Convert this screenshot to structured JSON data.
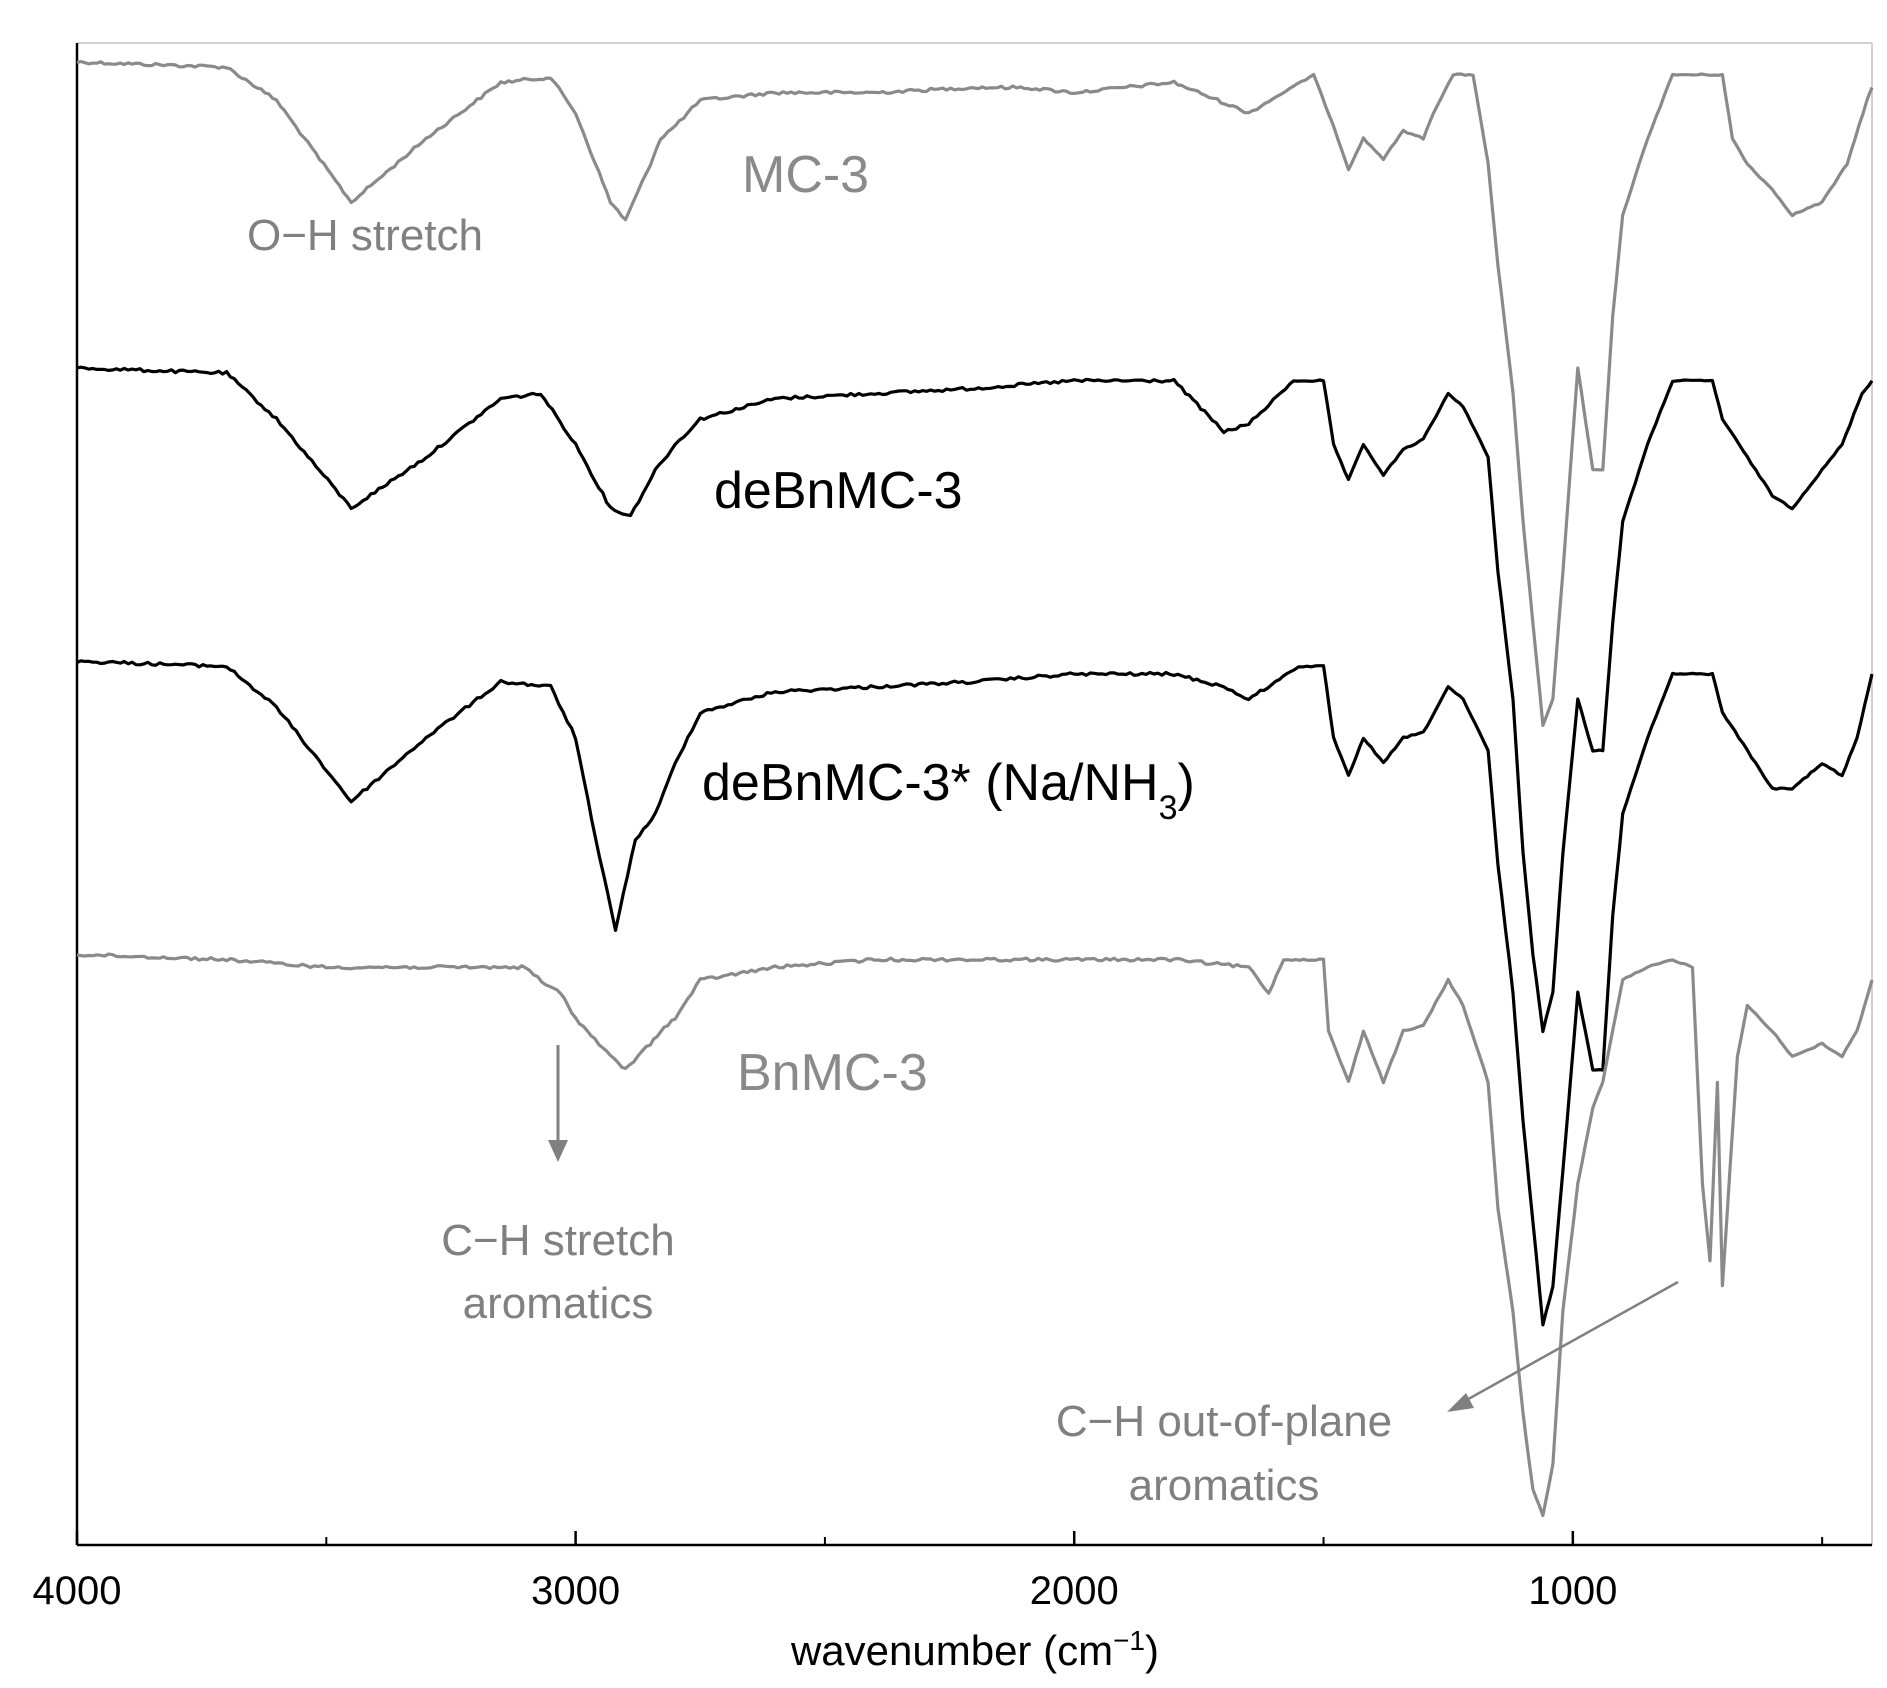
{
  "chart_data": {
    "type": "line",
    "title": "",
    "xlabel": "wavenumber (cm",
    "xlabel_sup": "−1",
    "xlabel_close": ")",
    "ylabel": "",
    "xlim": [
      4000,
      400
    ],
    "x_reversed": true,
    "x_ticks": [
      4000,
      3000,
      2000,
      1000
    ],
    "x_tick_labels": [
      "4000",
      "3000",
      "2000",
      "1000"
    ],
    "x_minor_ticks": [
      3500,
      2500,
      1500,
      500
    ],
    "grid": false,
    "colors": {
      "gray": "#8a8a8a",
      "black": "#000000",
      "annotation": "#808080"
    },
    "series": [
      {
        "label": "MC-3",
        "color": "#8a8a8a",
        "offset": 0,
        "points": [
          [
            4000,
            0
          ],
          [
            3700,
            0.02
          ],
          [
            3600,
            0.15
          ],
          [
            3450,
            0.55
          ],
          [
            3300,
            0.3
          ],
          [
            3150,
            0.08
          ],
          [
            3050,
            0.06
          ],
          [
            3000,
            0.2
          ],
          [
            2930,
            0.55
          ],
          [
            2900,
            0.62
          ],
          [
            2850,
            0.4
          ],
          [
            2830,
            0.3
          ],
          [
            2800,
            0.25
          ],
          [
            2750,
            0.15
          ],
          [
            2600,
            0.12
          ],
          [
            2400,
            0.12
          ],
          [
            2200,
            0.1
          ],
          [
            2100,
            0.1
          ],
          [
            2000,
            0.12
          ],
          [
            1800,
            0.08
          ],
          [
            1650,
            0.2
          ],
          [
            1520,
            0.05
          ],
          [
            1480,
            0.25
          ],
          [
            1450,
            0.42
          ],
          [
            1420,
            0.3
          ],
          [
            1380,
            0.38
          ],
          [
            1340,
            0.27
          ],
          [
            1300,
            0.3
          ],
          [
            1280,
            0.2
          ],
          [
            1240,
            0.05
          ],
          [
            1200,
            0.05
          ],
          [
            1170,
            0.4
          ],
          [
            1150,
            0.8
          ],
          [
            1120,
            1.3
          ],
          [
            1100,
            1.8
          ],
          [
            1080,
            2.2
          ],
          [
            1060,
            2.6
          ],
          [
            1040,
            2.5
          ],
          [
            1020,
            2.0
          ],
          [
            990,
            1.2
          ],
          [
            960,
            1.6
          ],
          [
            940,
            1.6
          ],
          [
            920,
            1.0
          ],
          [
            900,
            0.6
          ],
          [
            850,
            0.3
          ],
          [
            800,
            0.05
          ],
          [
            750,
            0.05
          ],
          [
            700,
            0.05
          ],
          [
            680,
            0.3
          ],
          [
            650,
            0.4
          ],
          [
            600,
            0.5
          ],
          [
            560,
            0.6
          ],
          [
            500,
            0.55
          ],
          [
            450,
            0.4
          ],
          [
            410,
            0.15
          ],
          [
            400,
            0.1
          ]
        ]
      },
      {
        "label": "deBnMC-3",
        "color": "#000000",
        "offset": 1.2,
        "points": [
          [
            4000,
            0
          ],
          [
            3700,
            0.02
          ],
          [
            3600,
            0.2
          ],
          [
            3450,
            0.55
          ],
          [
            3300,
            0.35
          ],
          [
            3150,
            0.12
          ],
          [
            3070,
            0.1
          ],
          [
            3000,
            0.3
          ],
          [
            2930,
            0.55
          ],
          [
            2890,
            0.58
          ],
          [
            2840,
            0.4
          ],
          [
            2800,
            0.3
          ],
          [
            2750,
            0.2
          ],
          [
            2600,
            0.12
          ],
          [
            2400,
            0.1
          ],
          [
            2200,
            0.08
          ],
          [
            2000,
            0.05
          ],
          [
            1800,
            0.05
          ],
          [
            1700,
            0.25
          ],
          [
            1650,
            0.22
          ],
          [
            1560,
            0.05
          ],
          [
            1500,
            0.05
          ],
          [
            1480,
            0.3
          ],
          [
            1450,
            0.44
          ],
          [
            1420,
            0.3
          ],
          [
            1380,
            0.42
          ],
          [
            1340,
            0.32
          ],
          [
            1300,
            0.28
          ],
          [
            1250,
            0.1
          ],
          [
            1220,
            0.15
          ],
          [
            1170,
            0.35
          ],
          [
            1150,
            0.8
          ],
          [
            1120,
            1.3
          ],
          [
            1100,
            1.9
          ],
          [
            1080,
            2.3
          ],
          [
            1060,
            2.6
          ],
          [
            1040,
            2.45
          ],
          [
            1020,
            1.9
          ],
          [
            990,
            1.3
          ],
          [
            960,
            1.5
          ],
          [
            940,
            1.5
          ],
          [
            920,
            1.0
          ],
          [
            900,
            0.6
          ],
          [
            850,
            0.3
          ],
          [
            800,
            0.05
          ],
          [
            720,
            0.05
          ],
          [
            700,
            0.2
          ],
          [
            650,
            0.35
          ],
          [
            600,
            0.5
          ],
          [
            560,
            0.55
          ],
          [
            500,
            0.4
          ],
          [
            460,
            0.3
          ],
          [
            420,
            0.1
          ],
          [
            400,
            0.05
          ]
        ]
      },
      {
        "label": "deBnMC-3* (Na/NH",
        "label_sub": "3",
        "label_close": ")",
        "color": "#000000",
        "offset": 2.35,
        "points": [
          [
            4000,
            0
          ],
          [
            3700,
            0.02
          ],
          [
            3600,
            0.18
          ],
          [
            3450,
            0.55
          ],
          [
            3300,
            0.3
          ],
          [
            3150,
            0.08
          ],
          [
            3050,
            0.1
          ],
          [
            3000,
            0.3
          ],
          [
            2960,
            0.7
          ],
          [
            2920,
            1.05
          ],
          [
            2880,
            0.7
          ],
          [
            2840,
            0.6
          ],
          [
            2800,
            0.4
          ],
          [
            2750,
            0.2
          ],
          [
            2600,
            0.12
          ],
          [
            2400,
            0.1
          ],
          [
            2200,
            0.08
          ],
          [
            2000,
            0.05
          ],
          [
            1800,
            0.05
          ],
          [
            1700,
            0.1
          ],
          [
            1650,
            0.15
          ],
          [
            1550,
            0.02
          ],
          [
            1500,
            0.02
          ],
          [
            1480,
            0.3
          ],
          [
            1450,
            0.45
          ],
          [
            1420,
            0.3
          ],
          [
            1380,
            0.4
          ],
          [
            1340,
            0.3
          ],
          [
            1300,
            0.28
          ],
          [
            1250,
            0.1
          ],
          [
            1220,
            0.15
          ],
          [
            1170,
            0.35
          ],
          [
            1150,
            0.8
          ],
          [
            1120,
            1.3
          ],
          [
            1100,
            1.8
          ],
          [
            1080,
            2.2
          ],
          [
            1060,
            2.6
          ],
          [
            1040,
            2.45
          ],
          [
            1020,
            2.0
          ],
          [
            990,
            1.3
          ],
          [
            960,
            1.6
          ],
          [
            940,
            1.6
          ],
          [
            920,
            1.0
          ],
          [
            900,
            0.6
          ],
          [
            850,
            0.3
          ],
          [
            800,
            0.05
          ],
          [
            720,
            0.05
          ],
          [
            700,
            0.2
          ],
          [
            650,
            0.35
          ],
          [
            600,
            0.5
          ],
          [
            560,
            0.5
          ],
          [
            500,
            0.4
          ],
          [
            460,
            0.45
          ],
          [
            430,
            0.3
          ],
          [
            400,
            0.05
          ]
        ]
      },
      {
        "label": "BnMC-3",
        "color": "#8a8a8a",
        "offset": 3.5,
        "points": [
          [
            4000,
            0
          ],
          [
            3700,
            0.02
          ],
          [
            3500,
            0.05
          ],
          [
            3300,
            0.05
          ],
          [
            3100,
            0.05
          ],
          [
            3060,
            0.12
          ],
          [
            3030,
            0.15
          ],
          [
            3000,
            0.25
          ],
          [
            2930,
            0.4
          ],
          [
            2900,
            0.45
          ],
          [
            2850,
            0.35
          ],
          [
            2830,
            0.3
          ],
          [
            2800,
            0.25
          ],
          [
            2750,
            0.1
          ],
          [
            2600,
            0.05
          ],
          [
            2400,
            0.02
          ],
          [
            2200,
            0.02
          ],
          [
            2000,
            0.02
          ],
          [
            1800,
            0.02
          ],
          [
            1650,
            0.05
          ],
          [
            1610,
            0.15
          ],
          [
            1580,
            0.02
          ],
          [
            1500,
            0.02
          ],
          [
            1490,
            0.3
          ],
          [
            1450,
            0.5
          ],
          [
            1420,
            0.3
          ],
          [
            1380,
            0.5
          ],
          [
            1340,
            0.3
          ],
          [
            1300,
            0.28
          ],
          [
            1250,
            0.1
          ],
          [
            1220,
            0.2
          ],
          [
            1170,
            0.5
          ],
          [
            1150,
            1.0
          ],
          [
            1120,
            1.4
          ],
          [
            1100,
            1.8
          ],
          [
            1080,
            2.1
          ],
          [
            1060,
            2.2
          ],
          [
            1040,
            2.0
          ],
          [
            1020,
            1.4
          ],
          [
            990,
            0.9
          ],
          [
            960,
            0.6
          ],
          [
            940,
            0.5
          ],
          [
            920,
            0.3
          ],
          [
            900,
            0.1
          ],
          [
            850,
            0.05
          ],
          [
            800,
            0.02
          ],
          [
            760,
            0.05
          ],
          [
            740,
            0.9
          ],
          [
            725,
            1.2
          ],
          [
            710,
            0.5
          ],
          [
            700,
            1.3
          ],
          [
            690,
            1.0
          ],
          [
            670,
            0.4
          ],
          [
            650,
            0.2
          ],
          [
            600,
            0.3
          ],
          [
            560,
            0.4
          ],
          [
            500,
            0.35
          ],
          [
            460,
            0.4
          ],
          [
            430,
            0.3
          ],
          [
            400,
            0.1
          ]
        ]
      }
    ],
    "annotations": [
      {
        "text": "O−H stretch",
        "color": "#808080"
      },
      {
        "lines": [
          "C−H stretch",
          "aromatics"
        ],
        "color": "#808080"
      },
      {
        "lines": [
          "C−H out-of-plane",
          "aromatics"
        ],
        "color": "#808080"
      }
    ]
  }
}
